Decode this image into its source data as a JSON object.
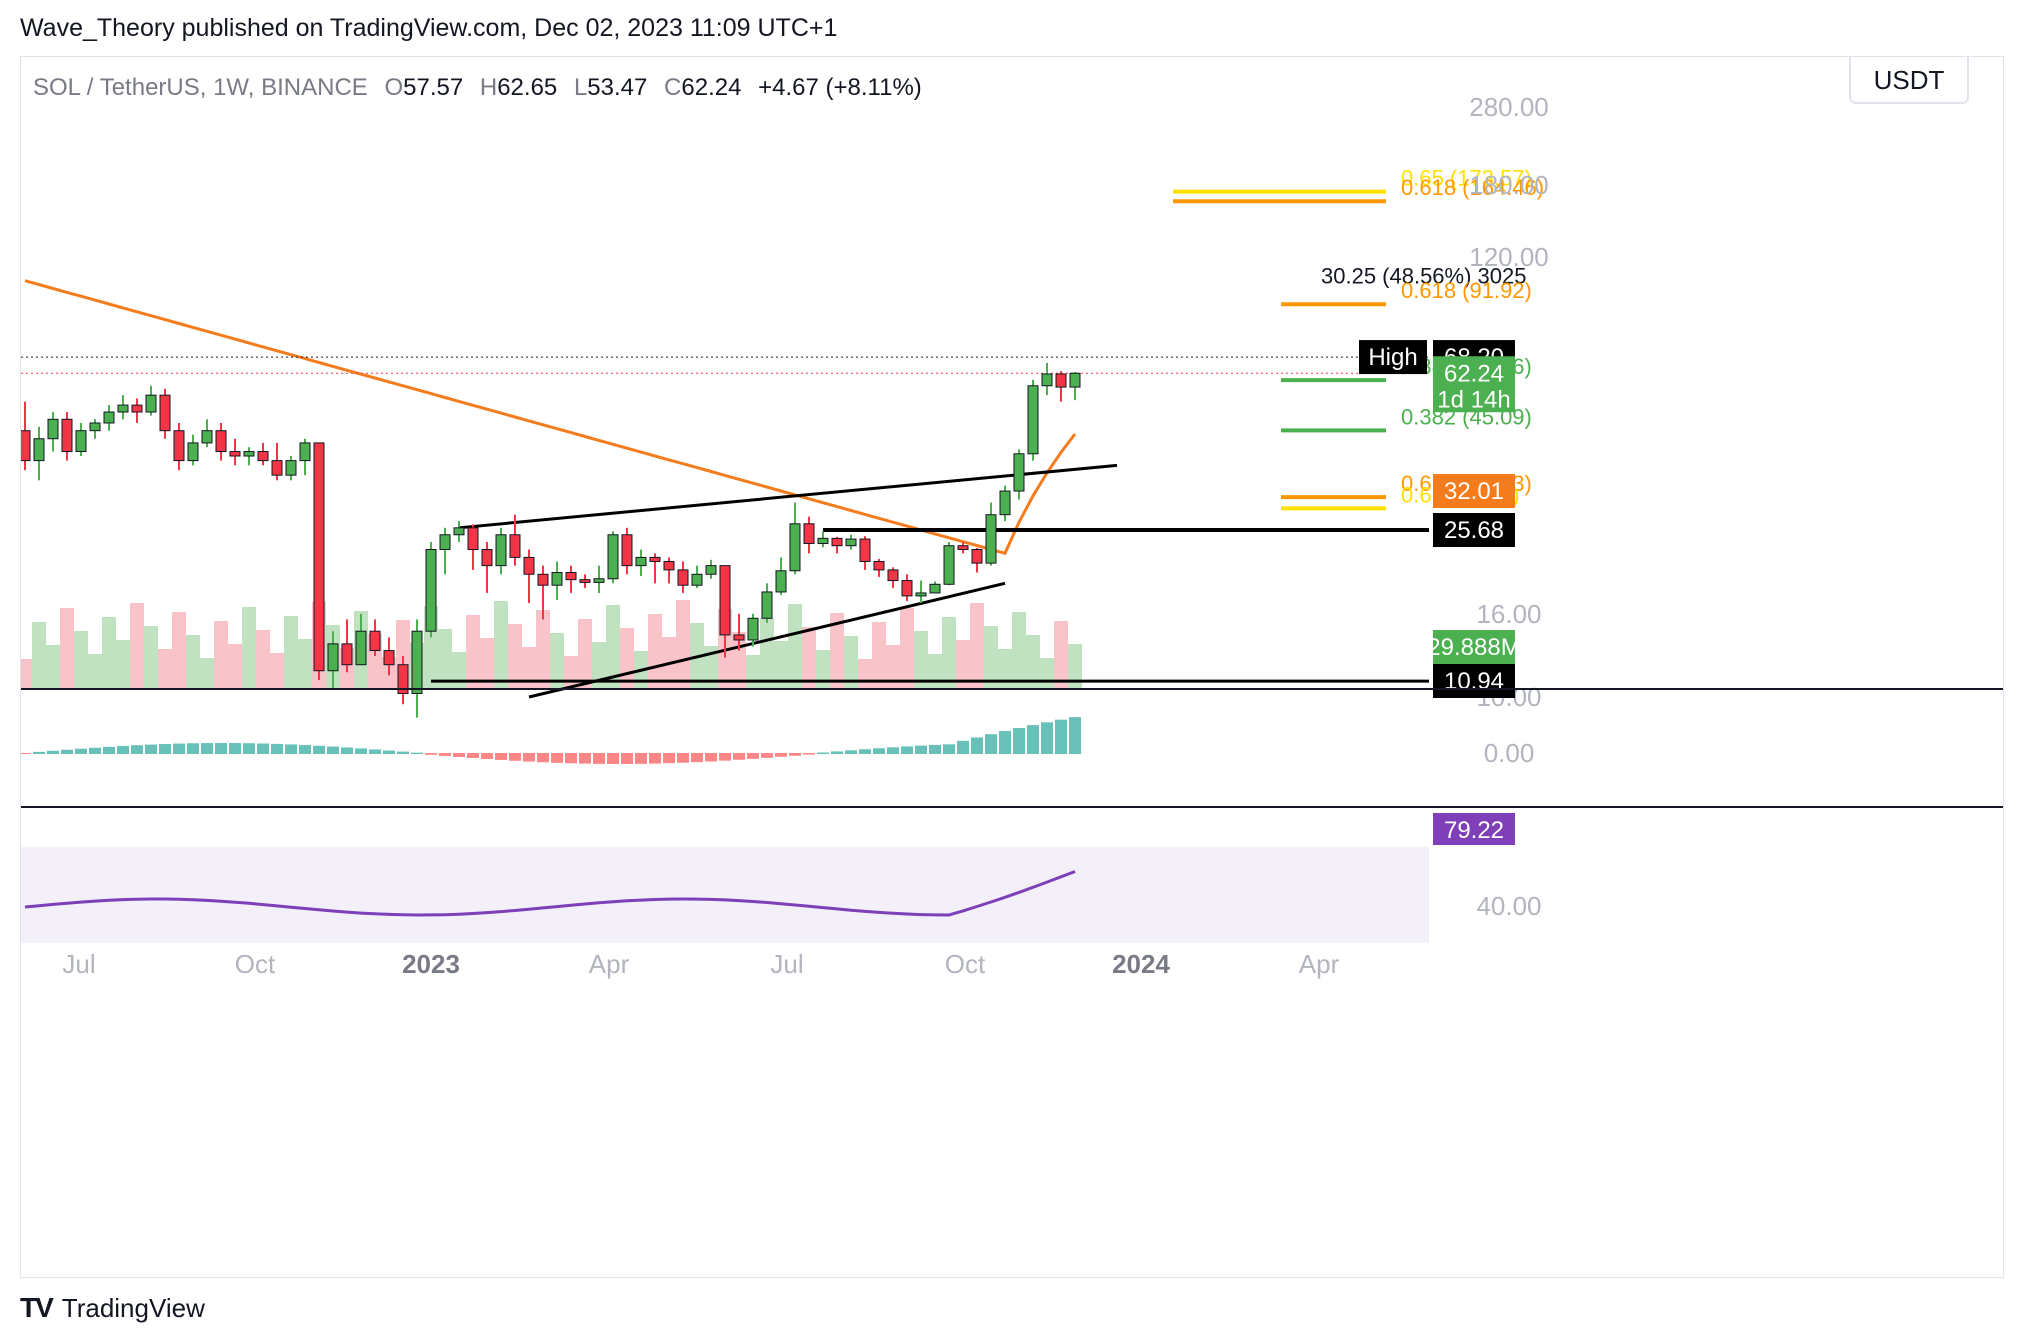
{
  "header": {
    "publish_line": "Wave_Theory published on TradingView.com, Dec 02, 2023 11:09 UTC+1"
  },
  "legend": {
    "symbol": "SOL / TetherUS, 1W, BINANCE",
    "o_label": "O",
    "o_value": "57.57",
    "h_label": "H",
    "h_value": "62.65",
    "l_label": "L",
    "l_value": "53.47",
    "c_label": "C",
    "c_value": "62.24",
    "change": "+4.67 (+8.11%)"
  },
  "currency_button": "USDT",
  "footer": {
    "brand": "TradingView"
  },
  "chart_data": {
    "type": "candlestick",
    "interval": "1W",
    "y_scale": "log",
    "price_axis_ticks": [
      "280.00",
      "180.00",
      "120.00",
      "16.00",
      "10.00"
    ],
    "time_axis_labels": [
      "Jul",
      "Oct",
      "2023",
      "Apr",
      "Jul",
      "Oct",
      "2024",
      "Apr"
    ],
    "candles": [
      [
        45,
        38,
        53,
        36
      ],
      [
        38,
        43,
        46,
        34
      ],
      [
        43,
        48,
        50,
        40
      ],
      [
        48,
        40,
        50,
        38
      ],
      [
        40,
        45,
        47,
        39
      ],
      [
        45,
        47,
        48,
        43
      ],
      [
        47,
        50,
        52,
        45
      ],
      [
        50,
        52,
        55,
        48
      ],
      [
        52,
        50,
        54,
        47
      ],
      [
        50,
        55,
        58,
        49
      ],
      [
        55,
        45,
        57,
        43
      ],
      [
        45,
        38,
        47,
        36
      ],
      [
        38,
        42,
        44,
        37
      ],
      [
        42,
        45,
        48,
        41
      ],
      [
        45,
        40,
        47,
        38
      ],
      [
        40,
        39,
        43,
        37
      ],
      [
        39,
        40,
        41,
        37
      ],
      [
        40,
        38,
        42,
        37
      ],
      [
        38,
        35,
        42,
        34
      ],
      [
        35,
        38,
        39,
        34
      ],
      [
        38,
        42,
        43,
        35
      ],
      [
        42,
        11.6,
        42,
        11
      ],
      [
        11.6,
        13.5,
        14.5,
        10.5
      ],
      [
        13.5,
        12,
        15.5,
        11.5
      ],
      [
        12,
        14.5,
        16,
        12
      ],
      [
        14.5,
        13,
        15.5,
        12.6
      ],
      [
        13,
        12,
        14,
        11.3
      ],
      [
        12,
        10.2,
        12.6,
        9.6
      ],
      [
        10.2,
        14.5,
        15.5,
        8.9
      ],
      [
        14.5,
        23,
        24,
        14
      ],
      [
        23,
        25,
        26,
        20
      ],
      [
        25,
        26,
        27,
        24
      ],
      [
        26,
        23,
        26.5,
        20.5
      ],
      [
        23,
        21,
        24,
        18
      ],
      [
        21,
        25,
        26,
        20
      ],
      [
        25,
        22,
        28,
        21
      ],
      [
        22,
        20,
        23,
        17
      ],
      [
        20,
        18.8,
        21,
        15.5
      ],
      [
        18.8,
        20.2,
        21.5,
        17.3
      ],
      [
        20.2,
        19.4,
        21,
        18
      ],
      [
        19.4,
        19.1,
        20,
        18.5
      ],
      [
        19.1,
        19.5,
        21,
        18
      ],
      [
        19.5,
        25,
        25.5,
        19
      ],
      [
        25,
        21,
        26,
        20
      ],
      [
        21,
        22,
        23,
        19.8
      ],
      [
        22,
        21.5,
        22.5,
        19
      ],
      [
        21.5,
        20.5,
        22,
        19
      ],
      [
        20.5,
        18.8,
        21.5,
        18
      ],
      [
        18.8,
        20,
        21,
        18.5
      ],
      [
        20,
        21,
        21.7,
        19.5
      ],
      [
        21,
        14.2,
        21,
        12.5
      ],
      [
        14.2,
        13.8,
        16,
        13
      ],
      [
        13.8,
        15.6,
        16,
        13.3
      ],
      [
        15.6,
        18.1,
        19,
        15.2
      ],
      [
        18.1,
        20.4,
        22,
        17.8
      ],
      [
        20.4,
        26.6,
        30,
        20
      ],
      [
        26.6,
        23.8,
        27.7,
        22.5
      ],
      [
        23.8,
        24.5,
        25.5,
        23.3
      ],
      [
        24.5,
        23.5,
        24.7,
        22.5
      ],
      [
        23.5,
        24.4,
        25,
        23
      ],
      [
        24.4,
        21.5,
        24.8,
        20.5
      ],
      [
        21.5,
        20.5,
        21.8,
        19.7
      ],
      [
        20.5,
        19.3,
        20.8,
        18.5
      ],
      [
        19.3,
        17.7,
        20,
        17.2
      ],
      [
        17.7,
        18,
        19.3,
        17
      ],
      [
        18,
        18.9,
        19.2,
        18.3
      ],
      [
        18.9,
        23.5,
        24,
        18.8
      ],
      [
        23.5,
        23,
        24,
        22.5
      ],
      [
        23,
        21.3,
        23.2,
        20.2
      ],
      [
        21.3,
        28,
        30,
        21
      ],
      [
        28,
        32,
        33,
        27
      ],
      [
        32,
        39.5,
        40.5,
        30.5
      ],
      [
        39.5,
        58,
        60,
        38
      ],
      [
        58,
        62,
        66,
        55
      ],
      [
        62,
        57.57,
        63,
        53
      ],
      [
        57.57,
        62.24,
        62.65,
        53.47
      ]
    ],
    "moving_average_color": "#f57c1c",
    "annotations": [
      {
        "text": "0.65 (173.57)",
        "color": "#ffe000"
      },
      {
        "text": "0.618 (164.46)",
        "color": "#ff9800"
      },
      {
        "text": "30.25 (48.56%) 3025",
        "color": "#131722"
      },
      {
        "text": "0.618 (91.92)",
        "color": "#ff9800"
      },
      {
        "text": "0.382 (59.86)",
        "color": "#4caf50"
      },
      {
        "text": "0.382 (45.09)",
        "color": "#4caf50"
      },
      {
        "text": "0.618 (30.93)",
        "color": "#ff9800"
      },
      {
        "text": "0.65 (29.01)",
        "color": "#ffe000"
      }
    ],
    "price_labels": [
      {
        "text": "High",
        "value": "68.20",
        "bg": "#000000"
      },
      {
        "text": "62.24",
        "sub": "1d 14h",
        "bg": "#4caf50"
      },
      {
        "text": "32.01",
        "bg": "#f57c1c"
      },
      {
        "text": "25.68",
        "bg": "#000000"
      },
      {
        "text": "29.888M",
        "bg": "#4caf50"
      },
      {
        "text": "10.94",
        "bg": "#000000"
      }
    ],
    "macd": {
      "axis_label": "0.00"
    },
    "rsi": {
      "value": "79.22",
      "axis_label": "40.00",
      "color": "#7e3fb8"
    }
  },
  "colors": {
    "up": "#4caf50",
    "down": "#f23645",
    "grid": "#e0e3eb",
    "axis_text": "#b2b5be"
  }
}
